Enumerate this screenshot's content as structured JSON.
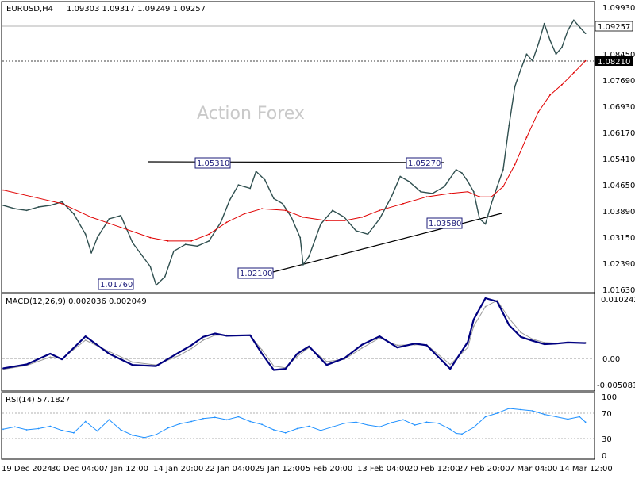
{
  "chart_data": {
    "type": "line",
    "header": {
      "symbol": "EURUSD,H4",
      "ohlc": "1.09303 1.09317 1.09249 1.09257"
    },
    "watermark": "Action Forex",
    "x_labels": [
      "19 Dec 2024",
      "30 Dec 04:00",
      "7 Jan 12:00",
      "14 Jan 20:00",
      "22 Jan 04:00",
      "29 Jan 12:00",
      "5 Feb 20:00",
      "13 Feb 04:00",
      "20 Feb 12:00",
      "27 Feb 20:00",
      "7 Mar 04:00",
      "14 Mar 12:00"
    ],
    "price_panel": {
      "ylim": [
        1.0163,
        1.0994
      ],
      "ticks": [
        "1.09930",
        "1.08450",
        "1.07690",
        "1.06930",
        "1.06170",
        "1.05410",
        "1.04650",
        "1.03890",
        "1.03150",
        "1.02390",
        "1.01630"
      ],
      "current_price": {
        "label": "1.09257",
        "value": 1.09257
      },
      "level_line": {
        "label": "1.08210",
        "value": 1.0821
      },
      "annotations": [
        {
          "label": "1.01760",
          "value": 1.0176
        },
        {
          "label": "1.05310",
          "value": 1.0531
        },
        {
          "label": "1.02100",
          "value": 1.021
        },
        {
          "label": "1.05270",
          "value": 1.0527
        },
        {
          "label": "1.03580",
          "value": 1.0358
        }
      ],
      "resistance_line": {
        "from": [
          0.0,
          1.0531
        ],
        "to": [
          0.72,
          1.0527
        ]
      },
      "support_line": {
        "from": [
          0.46,
          1.021
        ],
        "to": [
          0.85,
          1.0382
        ]
      },
      "series": [
        {
          "type": "ohlc-bars",
          "color": "#2f4f4f",
          "points": [
            [
              0.0,
              1.042
            ],
            [
              0.02,
              1.041
            ],
            [
              0.04,
              1.0405
            ],
            [
              0.06,
              1.0415
            ],
            [
              0.08,
              1.042
            ],
            [
              0.1,
              1.043
            ],
            [
              0.12,
              1.0395
            ],
            [
              0.14,
              1.0335
            ],
            [
              0.15,
              1.028
            ],
            [
              0.16,
              1.0325
            ],
            [
              0.18,
              1.038
            ],
            [
              0.2,
              1.039
            ],
            [
              0.22,
              1.031
            ],
            [
              0.235,
              1.0275
            ],
            [
              0.25,
              1.024
            ],
            [
              0.26,
              1.0185
            ],
            [
              0.275,
              1.021
            ],
            [
              0.29,
              1.0285
            ],
            [
              0.31,
              1.0305
            ],
            [
              0.33,
              1.03
            ],
            [
              0.35,
              1.0315
            ],
            [
              0.37,
              1.037
            ],
            [
              0.385,
              1.0435
            ],
            [
              0.4,
              1.048
            ],
            [
              0.42,
              1.047
            ],
            [
              0.43,
              1.052
            ],
            [
              0.445,
              1.0495
            ],
            [
              0.46,
              1.044
            ],
            [
              0.475,
              1.0425
            ],
            [
              0.49,
              1.0385
            ],
            [
              0.505,
              1.0325
            ],
            [
              0.51,
              1.0245
            ],
            [
              0.52,
              1.027
            ],
            [
              0.54,
              1.0365
            ],
            [
              0.56,
              1.0405
            ],
            [
              0.58,
              1.0385
            ],
            [
              0.6,
              1.0345
            ],
            [
              0.62,
              1.0335
            ],
            [
              0.64,
              1.038
            ],
            [
              0.66,
              1.0445
            ],
            [
              0.675,
              1.0505
            ],
            [
              0.69,
              1.049
            ],
            [
              0.71,
              1.046
            ],
            [
              0.73,
              1.0455
            ],
            [
              0.75,
              1.0475
            ],
            [
              0.77,
              1.0525
            ],
            [
              0.78,
              1.0515
            ],
            [
              0.79,
              1.049
            ],
            [
              0.8,
              1.046
            ],
            [
              0.81,
              1.038
            ],
            [
              0.82,
              1.0365
            ],
            [
              0.83,
              1.0425
            ],
            [
              0.84,
              1.0475
            ],
            [
              0.85,
              1.0525
            ],
            [
              0.86,
              1.0655
            ],
            [
              0.87,
              1.077
            ],
            [
              0.88,
              1.082
            ],
            [
              0.89,
              1.0865
            ],
            [
              0.9,
              1.0845
            ],
            [
              0.91,
              1.0895
            ],
            [
              0.92,
              1.0955
            ],
            [
              0.93,
              1.0905
            ],
            [
              0.94,
              1.0865
            ],
            [
              0.95,
              1.0885
            ],
            [
              0.96,
              1.0935
            ],
            [
              0.97,
              1.0965
            ],
            [
              0.98,
              1.0945
            ],
            [
              0.99,
              1.0926
            ]
          ]
        },
        {
          "type": "moving-average",
          "color": "#e00000",
          "points": [
            [
              0.0,
              1.0465
            ],
            [
              0.05,
              1.0445
            ],
            [
              0.1,
              1.0425
            ],
            [
              0.15,
              1.0385
            ],
            [
              0.2,
              1.0355
            ],
            [
              0.25,
              1.0325
            ],
            [
              0.28,
              1.0315
            ],
            [
              0.32,
              1.0315
            ],
            [
              0.35,
              1.0335
            ],
            [
              0.38,
              1.037
            ],
            [
              0.41,
              1.0395
            ],
            [
              0.44,
              1.041
            ],
            [
              0.48,
              1.0405
            ],
            [
              0.51,
              1.0385
            ],
            [
              0.55,
              1.0375
            ],
            [
              0.58,
              1.0375
            ],
            [
              0.61,
              1.0385
            ],
            [
              0.64,
              1.0405
            ],
            [
              0.68,
              1.0425
            ],
            [
              0.72,
              1.0445
            ],
            [
              0.76,
              1.0455
            ],
            [
              0.79,
              1.046
            ],
            [
              0.81,
              1.0445
            ],
            [
              0.83,
              1.0445
            ],
            [
              0.85,
              1.0475
            ],
            [
              0.87,
              1.054
            ],
            [
              0.89,
              1.062
            ],
            [
              0.91,
              1.0695
            ],
            [
              0.93,
              1.0745
            ],
            [
              0.95,
              1.0775
            ],
            [
              0.97,
              1.081
            ],
            [
              0.99,
              1.0845
            ]
          ]
        }
      ]
    },
    "macd_panel": {
      "label": "MACD(12,26,9) 0.002036 0.002049",
      "ticks": [
        "0.010242",
        "0.00",
        "-0.005081"
      ],
      "ylim": [
        -0.0064,
        0.0107
      ],
      "zero_line": 0.0,
      "series": [
        {
          "name": "MACD",
          "color": "#000080",
          "points": [
            [
              0.0,
              -0.0025
            ],
            [
              0.04,
              -0.0018
            ],
            [
              0.08,
              0.0001
            ],
            [
              0.1,
              -0.0009
            ],
            [
              0.14,
              0.0032
            ],
            [
              0.18,
              0.0001
            ],
            [
              0.22,
              -0.0019
            ],
            [
              0.26,
              -0.0021
            ],
            [
              0.3,
              0.0004
            ],
            [
              0.32,
              0.0016
            ],
            [
              0.34,
              0.0031
            ],
            [
              0.36,
              0.0037
            ],
            [
              0.38,
              0.0033
            ],
            [
              0.42,
              0.0034
            ],
            [
              0.44,
              0.0001
            ],
            [
              0.46,
              -0.0028
            ],
            [
              0.48,
              -0.0026
            ],
            [
              0.5,
              0.0001
            ],
            [
              0.52,
              0.0014
            ],
            [
              0.55,
              -0.0019
            ],
            [
              0.58,
              -0.0007
            ],
            [
              0.61,
              0.0017
            ],
            [
              0.64,
              0.0032
            ],
            [
              0.67,
              0.0012
            ],
            [
              0.7,
              0.0019
            ],
            [
              0.72,
              0.0016
            ],
            [
              0.76,
              -0.0026
            ],
            [
              0.79,
              0.0022
            ],
            [
              0.8,
              0.0062
            ],
            [
              0.82,
              0.01
            ],
            [
              0.84,
              0.0094
            ],
            [
              0.86,
              0.0052
            ],
            [
              0.88,
              0.0031
            ],
            [
              0.9,
              0.0024
            ],
            [
              0.92,
              0.0018
            ],
            [
              0.94,
              0.0019
            ],
            [
              0.96,
              0.0021
            ],
            [
              0.99,
              0.002
            ]
          ]
        },
        {
          "name": "Signal",
          "color": "#9a9a9a",
          "points": [
            [
              0.0,
              -0.0027
            ],
            [
              0.04,
              -0.002
            ],
            [
              0.08,
              -0.0005
            ],
            [
              0.1,
              -0.0008
            ],
            [
              0.14,
              0.0025
            ],
            [
              0.18,
              0.0005
            ],
            [
              0.22,
              -0.0014
            ],
            [
              0.26,
              -0.0019
            ],
            [
              0.3,
              -0.0002
            ],
            [
              0.32,
              0.001
            ],
            [
              0.34,
              0.0025
            ],
            [
              0.36,
              0.0034
            ],
            [
              0.38,
              0.0034
            ],
            [
              0.42,
              0.0033
            ],
            [
              0.44,
              0.0008
            ],
            [
              0.46,
              -0.0021
            ],
            [
              0.48,
              -0.0024
            ],
            [
              0.5,
              -0.0004
            ],
            [
              0.52,
              0.0012
            ],
            [
              0.55,
              -0.0013
            ],
            [
              0.58,
              -0.0009
            ],
            [
              0.61,
              0.0011
            ],
            [
              0.64,
              0.0029
            ],
            [
              0.67,
              0.0016
            ],
            [
              0.7,
              0.0017
            ],
            [
              0.72,
              0.0017
            ],
            [
              0.76,
              -0.0018
            ],
            [
              0.79,
              0.0012
            ],
            [
              0.8,
              0.005
            ],
            [
              0.82,
              0.0085
            ],
            [
              0.84,
              0.0096
            ],
            [
              0.86,
              0.0064
            ],
            [
              0.88,
              0.0039
            ],
            [
              0.9,
              0.0027
            ],
            [
              0.92,
              0.0021
            ],
            [
              0.94,
              0.002
            ],
            [
              0.96,
              0.002
            ],
            [
              0.99,
              0.0021
            ]
          ]
        }
      ]
    },
    "rsi_panel": {
      "label": "RSI(14) 57.1827",
      "ticks": [
        "100",
        "70",
        "30",
        "0"
      ],
      "ylim": [
        0,
        100
      ],
      "levels": [
        70,
        30
      ],
      "series": [
        {
          "name": "RSI",
          "color": "#1e90ff",
          "points": [
            [
              0.0,
              45
            ],
            [
              0.02,
              49
            ],
            [
              0.04,
              44
            ],
            [
              0.06,
              46
            ],
            [
              0.08,
              50
            ],
            [
              0.1,
              43
            ],
            [
              0.12,
              39
            ],
            [
              0.14,
              58
            ],
            [
              0.16,
              42
            ],
            [
              0.18,
              61
            ],
            [
              0.2,
              44
            ],
            [
              0.22,
              35
            ],
            [
              0.24,
              31
            ],
            [
              0.26,
              36
            ],
            [
              0.28,
              47
            ],
            [
              0.3,
              54
            ],
            [
              0.32,
              58
            ],
            [
              0.34,
              63
            ],
            [
              0.36,
              65
            ],
            [
              0.38,
              61
            ],
            [
              0.4,
              66
            ],
            [
              0.42,
              58
            ],
            [
              0.44,
              53
            ],
            [
              0.46,
              44
            ],
            [
              0.48,
              39
            ],
            [
              0.5,
              46
            ],
            [
              0.52,
              50
            ],
            [
              0.54,
              43
            ],
            [
              0.56,
              49
            ],
            [
              0.58,
              55
            ],
            [
              0.6,
              57
            ],
            [
              0.62,
              52
            ],
            [
              0.64,
              49
            ],
            [
              0.66,
              56
            ],
            [
              0.68,
              61
            ],
            [
              0.7,
              52
            ],
            [
              0.72,
              57
            ],
            [
              0.74,
              55
            ],
            [
              0.76,
              45
            ],
            [
              0.77,
              38
            ],
            [
              0.78,
              37
            ],
            [
              0.8,
              48
            ],
            [
              0.82,
              66
            ],
            [
              0.84,
              72
            ],
            [
              0.86,
              80
            ],
            [
              0.88,
              78
            ],
            [
              0.9,
              76
            ],
            [
              0.92,
              70
            ],
            [
              0.94,
              66
            ],
            [
              0.96,
              62
            ],
            [
              0.98,
              66
            ],
            [
              0.99,
              57
            ]
          ]
        }
      ]
    }
  }
}
